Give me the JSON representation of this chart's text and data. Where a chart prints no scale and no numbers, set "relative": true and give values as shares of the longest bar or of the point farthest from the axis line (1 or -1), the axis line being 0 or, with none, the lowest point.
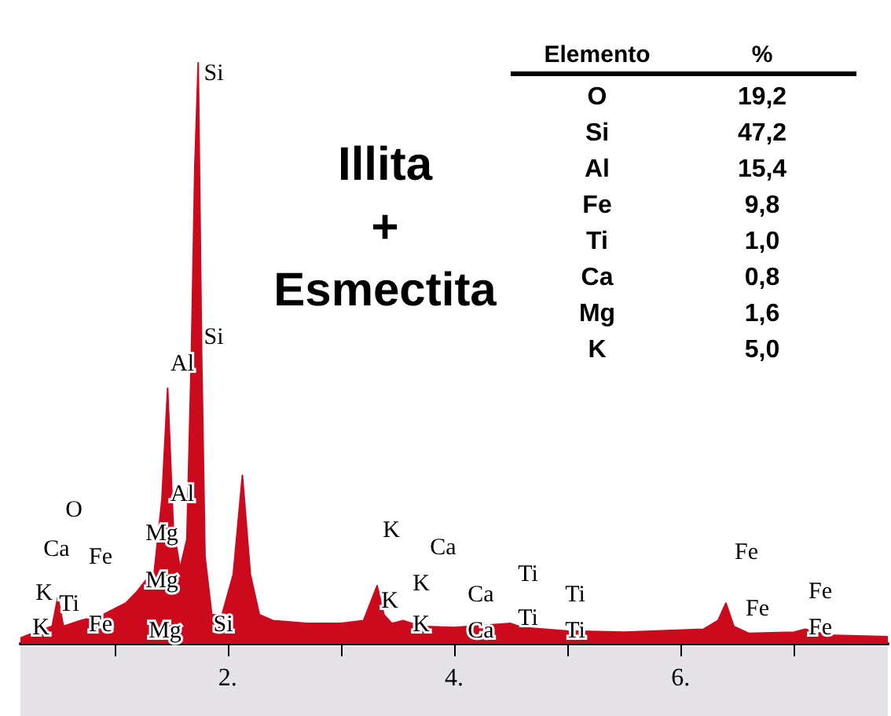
{
  "chart_data": [
    {
      "type": "area",
      "relative": true,
      "color": "#cc0a1e",
      "x": [
        0.17,
        0.3,
        0.45,
        0.5,
        0.55,
        0.7,
        0.9,
        1.1,
        1.2,
        1.28,
        1.35,
        1.42,
        1.47,
        1.52,
        1.58,
        1.64,
        1.68,
        1.71,
        1.74,
        1.77,
        1.8,
        1.86,
        1.95,
        2.05,
        2.13,
        2.2,
        2.28,
        2.4,
        2.7,
        3.0,
        3.2,
        3.28,
        3.32,
        3.38,
        3.45,
        3.55,
        3.7,
        4.0,
        4.5,
        4.6,
        5.0,
        5.5,
        6.2,
        6.33,
        6.4,
        6.47,
        6.6,
        7.0,
        7.1,
        7.3,
        7.83
      ],
      "values": [
        0.01,
        0.02,
        0.03,
        0.08,
        0.03,
        0.04,
        0.05,
        0.07,
        0.09,
        0.11,
        0.12,
        0.25,
        0.44,
        0.2,
        0.13,
        0.18,
        0.5,
        0.82,
        1.0,
        0.5,
        0.15,
        0.05,
        0.05,
        0.12,
        0.29,
        0.12,
        0.05,
        0.04,
        0.035,
        0.035,
        0.04,
        0.08,
        0.1,
        0.05,
        0.035,
        0.04,
        0.03,
        0.028,
        0.035,
        0.028,
        0.022,
        0.02,
        0.025,
        0.04,
        0.07,
        0.03,
        0.018,
        0.02,
        0.025,
        0.015,
        0.012
      ],
      "xlim": [
        0.17,
        7.83
      ],
      "xticks": [
        {
          "value": 1,
          "label": null
        },
        {
          "value": 2,
          "label": "2."
        },
        {
          "value": 3,
          "label": null
        },
        {
          "value": 4,
          "label": "4."
        },
        {
          "value": 5,
          "label": null
        },
        {
          "value": 6,
          "label": "6."
        },
        {
          "value": 7,
          "label": null
        }
      ],
      "grid": false,
      "annotations": [
        "Illita\n+\nEsmectita",
        "Si",
        "Si",
        "Al",
        "Al",
        "O",
        "Ca",
        "Fe",
        "Mg",
        "Mg",
        "Mg",
        "K",
        "Ti",
        "Fe",
        "K",
        "Si",
        "K",
        "Ca",
        "K",
        "K",
        "Ca",
        "Ti",
        "K",
        "Ca",
        "Ti",
        "Ti",
        "Ti",
        "Fe",
        "Fe",
        "Fe",
        "Fe"
      ]
    },
    {
      "type": "other",
      "xlabel": "Elemento",
      "ylabel": "%",
      "categories": [
        "O",
        "Si",
        "Al",
        "Fe",
        "Ti",
        "Ca",
        "Mg",
        "K"
      ],
      "value_labels": [
        "19,2",
        "47,2",
        "15,4",
        "9,8",
        "1,0",
        "0,8",
        "1,6",
        "5,0"
      ]
    }
  ]
}
